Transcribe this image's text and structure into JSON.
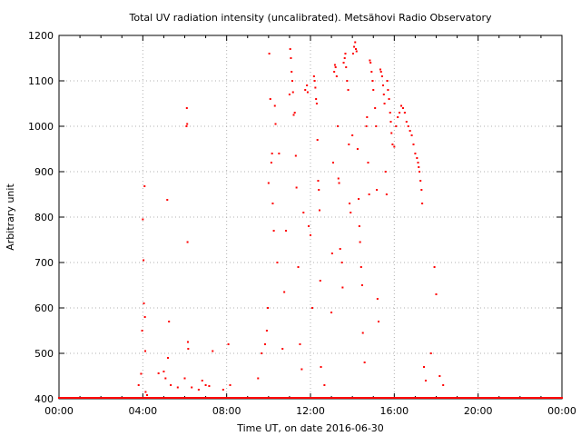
{
  "chart_data": {
    "type": "scatter",
    "title": "Total UV radiation intensity (uncalibrated). Metsähovi Radio Observatory",
    "xlabel": "Time UT, on date 2016-06-30",
    "ylabel": "Arbitrary unit",
    "xlim": [
      "00:00",
      "24:00"
    ],
    "ylim": [
      400,
      1200
    ],
    "grid": true,
    "x_ticks": [
      "00:00",
      "04:00",
      "08:00",
      "12:00",
      "16:00",
      "20:00",
      "00:00"
    ],
    "y_ticks": [
      "400",
      "500",
      "600",
      "700",
      "800",
      "900",
      "1000",
      "1100",
      "1200"
    ],
    "series": [
      {
        "color": "#ff0000",
        "points": [
          [
            "03:48",
            430
          ],
          [
            "03:55",
            455
          ],
          [
            "03:58",
            550
          ],
          [
            "04:00",
            795
          ],
          [
            "04:02",
            705
          ],
          [
            "04:03",
            610
          ],
          [
            "04:05",
            868
          ],
          [
            "04:06",
            580
          ],
          [
            "04:07",
            505
          ],
          [
            "04:08",
            415
          ],
          [
            "04:12",
            408
          ],
          [
            "04:45",
            456
          ],
          [
            "05:00",
            460
          ],
          [
            "05:05",
            445
          ],
          [
            "05:10",
            838
          ],
          [
            "05:12",
            490
          ],
          [
            "05:15",
            570
          ],
          [
            "05:20",
            430
          ],
          [
            "05:40",
            425
          ],
          [
            "06:00",
            445
          ],
          [
            "06:05",
            1000
          ],
          [
            "06:06",
            1040
          ],
          [
            "06:07",
            1005
          ],
          [
            "06:08",
            745
          ],
          [
            "06:09",
            525
          ],
          [
            "06:10",
            510
          ],
          [
            "06:20",
            425
          ],
          [
            "06:40",
            420
          ],
          [
            "06:50",
            440
          ],
          [
            "07:00",
            430
          ],
          [
            "07:10",
            428
          ],
          [
            "07:20",
            505
          ],
          [
            "07:50",
            420
          ],
          [
            "08:05",
            520
          ],
          [
            "08:10",
            430
          ],
          [
            "09:30",
            445
          ],
          [
            "09:40",
            500
          ],
          [
            "09:50",
            520
          ],
          [
            "09:55",
            550
          ],
          [
            "09:58",
            600
          ],
          [
            "10:00",
            875
          ],
          [
            "10:02",
            1160
          ],
          [
            "10:05",
            1060
          ],
          [
            "10:08",
            920
          ],
          [
            "10:10",
            940
          ],
          [
            "10:12",
            830
          ],
          [
            "10:15",
            770
          ],
          [
            "10:18",
            1045
          ],
          [
            "10:20",
            1005
          ],
          [
            "10:25",
            700
          ],
          [
            "10:30",
            940
          ],
          [
            "10:40",
            510
          ],
          [
            "10:45",
            635
          ],
          [
            "10:50",
            770
          ],
          [
            "11:00",
            1070
          ],
          [
            "11:02",
            1170
          ],
          [
            "11:04",
            1150
          ],
          [
            "11:06",
            1120
          ],
          [
            "11:08",
            1100
          ],
          [
            "11:10",
            1075
          ],
          [
            "11:12",
            1025
          ],
          [
            "11:15",
            1030
          ],
          [
            "11:18",
            935
          ],
          [
            "11:20",
            865
          ],
          [
            "11:25",
            690
          ],
          [
            "11:30",
            520
          ],
          [
            "11:35",
            465
          ],
          [
            "11:40",
            810
          ],
          [
            "11:45",
            1080
          ],
          [
            "11:50",
            1090
          ],
          [
            "11:52",
            1075
          ],
          [
            "11:55",
            780
          ],
          [
            "12:00",
            760
          ],
          [
            "12:05",
            600
          ],
          [
            "12:10",
            1110
          ],
          [
            "12:12",
            1100
          ],
          [
            "12:14",
            1085
          ],
          [
            "12:16",
            1060
          ],
          [
            "12:18",
            1050
          ],
          [
            "12:20",
            970
          ],
          [
            "12:22",
            880
          ],
          [
            "12:24",
            860
          ],
          [
            "12:26",
            815
          ],
          [
            "12:28",
            660
          ],
          [
            "12:30",
            470
          ],
          [
            "12:40",
            430
          ],
          [
            "13:00",
            590
          ],
          [
            "13:02",
            720
          ],
          [
            "13:05",
            920
          ],
          [
            "13:08",
            1120
          ],
          [
            "13:10",
            1135
          ],
          [
            "13:12",
            1130
          ],
          [
            "13:15",
            1110
          ],
          [
            "13:18",
            1000
          ],
          [
            "13:20",
            885
          ],
          [
            "13:22",
            875
          ],
          [
            "13:25",
            730
          ],
          [
            "13:30",
            700
          ],
          [
            "13:32",
            645
          ],
          [
            "13:35",
            1140
          ],
          [
            "13:38",
            1150
          ],
          [
            "13:40",
            1160
          ],
          [
            "13:42",
            1130
          ],
          [
            "13:45",
            1100
          ],
          [
            "13:48",
            1080
          ],
          [
            "13:50",
            960
          ],
          [
            "13:52",
            830
          ],
          [
            "13:55",
            810
          ],
          [
            "14:00",
            980
          ],
          [
            "14:02",
            1160
          ],
          [
            "14:05",
            1175
          ],
          [
            "14:08",
            1185
          ],
          [
            "14:10",
            1170
          ],
          [
            "14:12",
            1165
          ],
          [
            "14:15",
            950
          ],
          [
            "14:18",
            840
          ],
          [
            "14:20",
            780
          ],
          [
            "14:22",
            745
          ],
          [
            "14:25",
            690
          ],
          [
            "14:28",
            650
          ],
          [
            "14:30",
            545
          ],
          [
            "14:35",
            480
          ],
          [
            "14:40",
            1000
          ],
          [
            "14:42",
            1020
          ],
          [
            "14:45",
            920
          ],
          [
            "14:48",
            850
          ],
          [
            "14:50",
            1145
          ],
          [
            "14:52",
            1140
          ],
          [
            "14:55",
            1120
          ],
          [
            "14:58",
            1100
          ],
          [
            "15:00",
            1080
          ],
          [
            "15:05",
            1040
          ],
          [
            "15:08",
            1000
          ],
          [
            "15:10",
            860
          ],
          [
            "15:12",
            620
          ],
          [
            "15:15",
            570
          ],
          [
            "15:20",
            1125
          ],
          [
            "15:22",
            1120
          ],
          [
            "15:25",
            1110
          ],
          [
            "15:28",
            1090
          ],
          [
            "15:30",
            1070
          ],
          [
            "15:32",
            1050
          ],
          [
            "15:35",
            900
          ],
          [
            "15:38",
            850
          ],
          [
            "15:40",
            1100
          ],
          [
            "15:42",
            1080
          ],
          [
            "15:45",
            1060
          ],
          [
            "15:48",
            1030
          ],
          [
            "15:50",
            1010
          ],
          [
            "15:52",
            985
          ],
          [
            "15:55",
            960
          ],
          [
            "16:00",
            955
          ],
          [
            "16:05",
            1000
          ],
          [
            "16:10",
            1020
          ],
          [
            "16:15",
            1030
          ],
          [
            "16:20",
            1045
          ],
          [
            "16:25",
            1040
          ],
          [
            "16:30",
            1030
          ],
          [
            "16:35",
            1010
          ],
          [
            "16:40",
            1000
          ],
          [
            "16:45",
            990
          ],
          [
            "16:50",
            980
          ],
          [
            "16:55",
            960
          ],
          [
            "17:00",
            940
          ],
          [
            "17:05",
            930
          ],
          [
            "17:08",
            920
          ],
          [
            "17:10",
            910
          ],
          [
            "17:12",
            900
          ],
          [
            "17:15",
            880
          ],
          [
            "17:18",
            860
          ],
          [
            "17:20",
            830
          ],
          [
            "17:25",
            470
          ],
          [
            "17:30",
            440
          ],
          [
            "17:45",
            500
          ],
          [
            "17:55",
            690
          ],
          [
            "18:00",
            630
          ],
          [
            "18:10",
            450
          ],
          [
            "18:20",
            430
          ]
        ]
      }
    ]
  }
}
